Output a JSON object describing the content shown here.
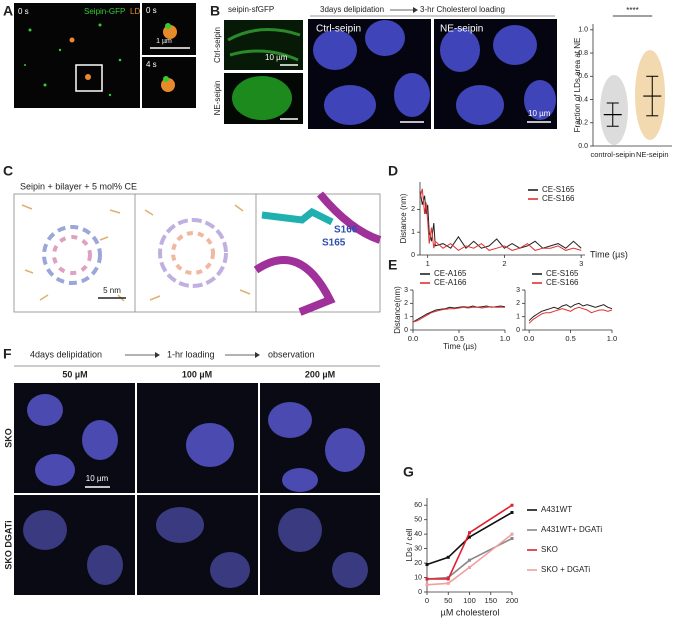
{
  "labels": {
    "A": {
      "panel": "A",
      "time_main": "0 s",
      "seipin": "Seipin-GFP",
      "ld": "LD",
      "time_top": "0 s",
      "scale": "1 µm",
      "time_bottom": "4 s"
    },
    "B": {
      "panel": "B",
      "header": "seipin-sfGFP",
      "step1": "3days delipidation",
      "step2": "3-hr Cholesterol loading",
      "row_ctrl": "Ctrl-seipin",
      "row_ne": "NE-seipin",
      "scale_small": "10 µm",
      "img_ctrl": "Ctrl-seipin",
      "img_ne": "NE-seipin",
      "scale_big": "10 µm"
    },
    "C": {
      "panel": "C",
      "title": "Seipin + bilayer + 5 mol% CE",
      "scale": "5 nm",
      "res1": "S166",
      "res2": "S165"
    },
    "D": {
      "panel": "D"
    },
    "E": {
      "panel": "E",
      "xlabel": "Time (µs)"
    },
    "F": {
      "panel": "F",
      "step1": "4days delipidation",
      "step2": "1-hr loading",
      "step3": "observation",
      "c1": "50 µM",
      "c2": "100 µM",
      "c3": "200 µM",
      "row1": "SKO",
      "row2": "SKO DGATi",
      "scale": "10 µm"
    },
    "G": {
      "panel": "G"
    }
  },
  "chart_data": [
    {
      "type": "errorbar",
      "ylabel": "Fraction of LDs area at NE",
      "categories": [
        "control-seipin",
        "NE-seipin"
      ],
      "values": [
        0.27,
        0.43
      ],
      "errors": [
        0.1,
        0.17
      ],
      "color": "#cccccc",
      "significance": "****",
      "ylim": [
        0,
        1.05
      ],
      "yticks": [
        {
          "value": 0,
          "label": "0.0"
        },
        0.2,
        0.4,
        0.6,
        0.8,
        {
          "value": 1,
          "label": "1.0"
        }
      ]
    },
    {
      "type": "line",
      "ylabel": "Distance (nm)",
      "xlabel": "Time (µs)",
      "xlim": [
        0.9,
        3.05
      ],
      "ylim": [
        0,
        3.2
      ],
      "xticks": [
        1,
        2,
        3
      ],
      "yticks": [
        0,
        1,
        2
      ],
      "x": [
        0.9,
        0.93,
        0.96,
        0.98,
        1.0,
        1.02,
        1.05,
        1.08,
        1.1,
        1.2,
        1.3,
        1.4,
        1.5,
        1.6,
        1.7,
        1.8,
        1.9,
        2.0,
        2.1,
        2.2,
        2.3,
        2.4,
        2.5,
        2.6,
        2.7,
        2.8,
        2.9,
        3.0
      ],
      "series": [
        {
          "name": "CE-S165",
          "color": "#222222",
          "values": [
            2.8,
            2.2,
            2.6,
            1.8,
            2.2,
            1.0,
            0.6,
            1.4,
            0.4,
            0.5,
            0.3,
            0.8,
            0.3,
            0.6,
            0.3,
            0.4,
            0.7,
            0.3,
            0.5,
            0.3,
            0.4,
            0.6,
            0.3,
            0.4,
            0.5,
            0.3,
            0.6,
            0.3
          ]
        },
        {
          "name": "CE-S166",
          "color": "#e03030",
          "values": [
            2.5,
            2.9,
            1.8,
            2.3,
            1.5,
            0.5,
            1.2,
            0.3,
            0.6,
            0.3,
            0.5,
            0.2,
            0.4,
            0.3,
            0.5,
            0.2,
            0.3,
            0.4,
            0.2,
            0.3,
            0.5,
            0.2,
            0.3,
            0.3,
            0.4,
            0.2,
            0.3,
            0.2
          ]
        }
      ]
    },
    {
      "type": "line",
      "ylabel": "Distance(nm)",
      "xlim": [
        0,
        1.0
      ],
      "ylim": [
        0,
        3
      ],
      "xticks": [
        {
          "value": 0,
          "label": "0.0"
        },
        0.5,
        {
          "value": 1,
          "label": "1.0"
        }
      ],
      "yticks": [
        0,
        1,
        2,
        3
      ],
      "x": [
        0,
        0.05,
        0.1,
        0.15,
        0.2,
        0.25,
        0.3,
        0.35,
        0.4,
        0.45,
        0.5,
        0.55,
        0.6,
        0.65,
        0.7,
        0.75,
        0.8,
        0.85,
        0.9,
        0.95,
        1.0
      ],
      "series": [
        {
          "name": "CE-A165",
          "color": "#222222",
          "values": [
            0.6,
            0.8,
            1.0,
            1.2,
            1.35,
            1.5,
            1.55,
            1.6,
            1.7,
            1.65,
            1.7,
            1.75,
            1.7,
            1.8,
            1.7,
            1.75,
            1.8,
            1.7,
            1.75,
            1.8,
            1.75
          ]
        },
        {
          "name": "CE-A166",
          "color": "#e03030",
          "values": [
            0.6,
            0.7,
            0.9,
            1.1,
            1.3,
            1.4,
            1.5,
            1.55,
            1.6,
            1.6,
            1.65,
            1.7,
            1.65,
            1.7,
            1.7,
            1.65,
            1.7,
            1.75,
            1.7,
            1.7,
            1.7
          ]
        }
      ]
    },
    {
      "type": "line",
      "xlim": [
        -0.05,
        1.0
      ],
      "ylim": [
        0,
        3
      ],
      "xticks": [
        {
          "value": 0,
          "label": "0.0"
        },
        0.5,
        {
          "value": 1,
          "label": "1.0"
        }
      ],
      "yticks": [
        0,
        1,
        2,
        3
      ],
      "x": [
        0,
        0.05,
        0.1,
        0.15,
        0.2,
        0.25,
        0.3,
        0.35,
        0.4,
        0.45,
        0.5,
        0.55,
        0.6,
        0.65,
        0.7,
        0.75,
        0.8,
        0.85,
        0.9,
        0.95,
        1.0
      ],
      "series": [
        {
          "name": "CE-S165",
          "color": "#222222",
          "values": [
            0.7,
            1.0,
            1.2,
            1.4,
            1.5,
            1.6,
            1.7,
            1.6,
            1.8,
            1.9,
            1.7,
            1.9,
            2.0,
            1.8,
            1.9,
            1.8,
            1.7,
            1.8,
            1.9,
            1.7,
            1.6
          ]
        },
        {
          "name": "CE-S166",
          "color": "#e03030",
          "values": [
            0.5,
            0.8,
            1.0,
            1.2,
            1.3,
            1.3,
            1.4,
            1.5,
            1.6,
            1.5,
            1.4,
            1.6,
            1.7,
            1.6,
            1.5,
            1.3,
            1.4,
            1.5,
            1.5,
            1.4,
            1.5
          ]
        }
      ]
    },
    {
      "type": "line",
      "ylabel": "LDs / cell",
      "xlabel": "µM cholesterol",
      "xlim": [
        0,
        200
      ],
      "ylim": [
        0,
        65
      ],
      "xticks": [
        0,
        50,
        100,
        150,
        200
      ],
      "yticks": [
        0,
        10,
        20,
        30,
        40,
        50,
        60
      ],
      "markers": true,
      "x": [
        0,
        50,
        100,
        200
      ],
      "series": [
        {
          "name": "A431WT",
          "color": "#111111",
          "values": [
            19,
            24,
            38,
            55
          ]
        },
        {
          "name": "A431WT+ DGATi",
          "color": "#888888",
          "values": [
            9,
            10,
            22,
            37
          ]
        },
        {
          "name": "SKO",
          "color": "#e02030",
          "values": [
            9,
            9,
            41,
            60
          ]
        },
        {
          "name": "SKO + DGATi",
          "color": "#f0a0a0",
          "values": [
            5,
            6,
            17,
            40
          ]
        }
      ]
    }
  ]
}
